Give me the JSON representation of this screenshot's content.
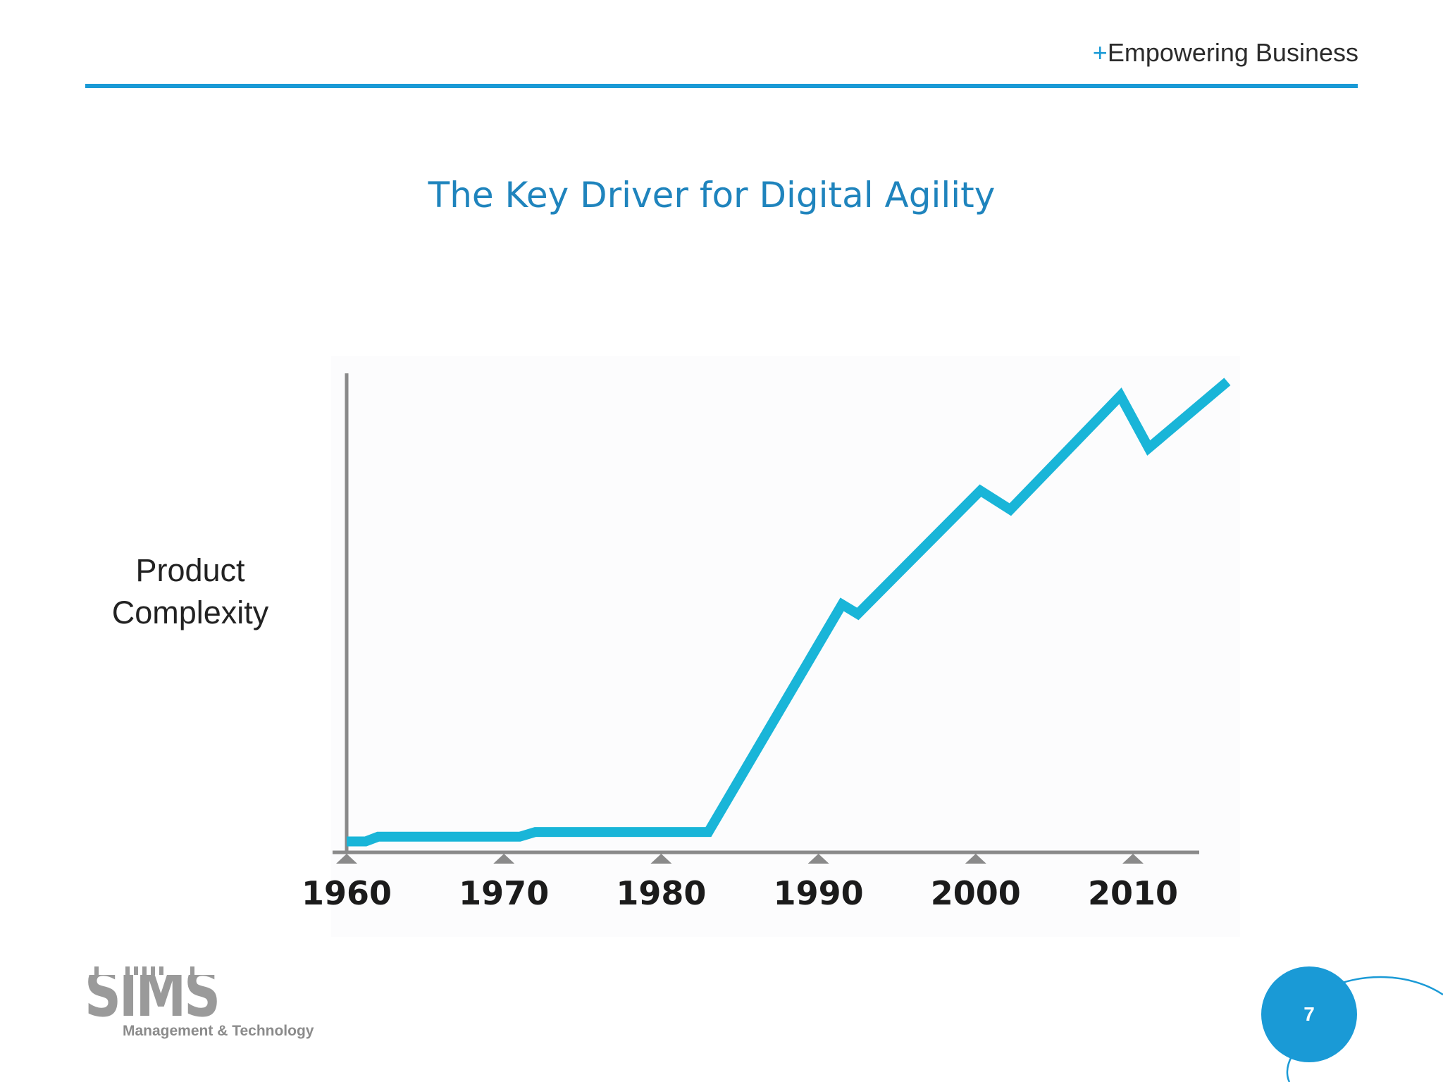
{
  "header": {
    "plus": "+",
    "tagline": "Empowering Business"
  },
  "slide": {
    "title": "The Key Driver for Digital Agility",
    "page_number": "7"
  },
  "logo": {
    "wordmark": "SIMS",
    "subtitle": "Management & Technology"
  },
  "colors": {
    "accent": "#1a9ad6",
    "line": "#19b5d8",
    "axis": "#8a8a8a"
  },
  "chart_data": {
    "type": "line",
    "ylabel": "Product Complexity",
    "xlabel": "",
    "xticks": [
      1960,
      1970,
      1980,
      1990,
      2000,
      2010
    ],
    "xlim": [
      1960,
      2016
    ],
    "ylim": [
      0,
      100
    ],
    "grid": false,
    "series": [
      {
        "x": [
          1960,
          1961.2,
          1962,
          1971,
          1972,
          1983,
          1991.5,
          1992.5,
          2000.3,
          2002.2,
          2009.2,
          2011,
          2016
        ],
        "y": [
          2,
          2,
          3,
          3,
          4,
          4,
          52,
          50,
          76,
          72,
          96,
          85,
          99
        ]
      }
    ]
  }
}
